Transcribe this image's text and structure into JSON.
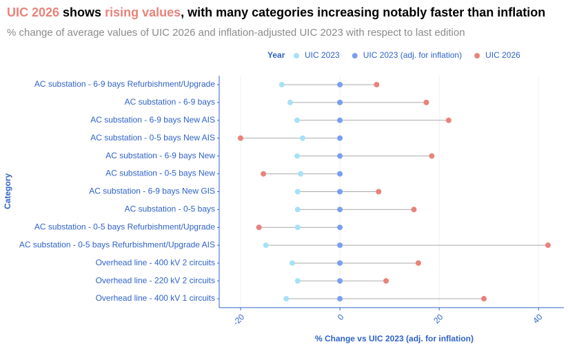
{
  "chart_data": {
    "type": "dumbbell",
    "title_parts": [
      {
        "text": "UIC 2026",
        "color": "#e8837a"
      },
      {
        "text": " shows ",
        "color": "#000000"
      },
      {
        "text": "rising values",
        "color": "#e8837a"
      },
      {
        "text": ", with many categories increasing notably faster than inflation",
        "color": "#000000"
      }
    ],
    "subtitle": "% change of average values of UIC 2026 and inflation-adjusted UIC 2023 with respect to last edition",
    "legend_title": "Year",
    "legend_position": "top",
    "x_label": "% Change vs UIC 2023 (adj. for inflation)",
    "y_label": "Category",
    "categories": [
      "AC substation - 6-9 bays Refurbishment/Upgrade",
      "AC substation - 6-9 bays",
      "AC substation - 6-9 bays New AIS",
      "AC substation - 0-5 bays New AIS",
      "AC substation - 6-9 bays New",
      "AC substation - 0-5 bays New",
      "AC substation - 6-9 bays New GIS",
      "AC substation - 0-5 bays",
      "AC substation - 0-5 bays Refurbishment/Upgrade",
      "AC substation - 0-5 bays Refurbishment/Upgrade AIS",
      "Overhead line - 400 kV 2 circuits",
      "Overhead line - 220 kV 2 circuits",
      "Overhead line - 400 kV 1 circuits"
    ],
    "series": [
      {
        "name": "UIC 2023",
        "color": "#a6e1f8",
        "values": [
          -11.7,
          -10,
          -8.6,
          -7.5,
          -8.6,
          -7.9,
          -8.5,
          -8.5,
          -8.5,
          -14.9,
          -9.6,
          -8.5,
          -10.8
        ]
      },
      {
        "name": "UIC 2023 (adj. for inflation)",
        "color": "#7a9ff0",
        "values": [
          0,
          0,
          0,
          0,
          0,
          0,
          0,
          0,
          0,
          0,
          0,
          0,
          0
        ]
      },
      {
        "name": "UIC 2026",
        "color": "#e8837a",
        "values": [
          7.4,
          17.4,
          21.9,
          -20,
          18.5,
          -15.4,
          7.8,
          14.9,
          -16.3,
          41.9,
          15.8,
          9.3,
          29
        ]
      }
    ],
    "xlim": [
      -24.3,
      45.1
    ],
    "xticks": [
      -20,
      0,
      20,
      40
    ],
    "grid": true
  }
}
